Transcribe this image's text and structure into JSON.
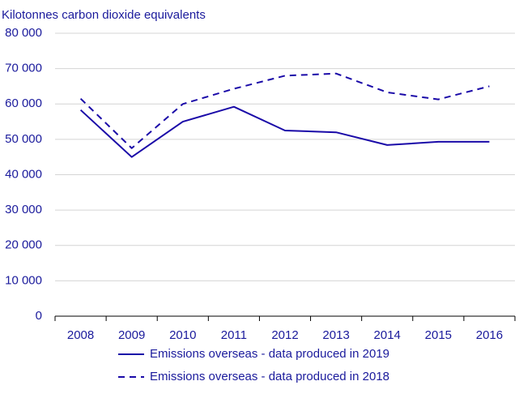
{
  "chart_data": {
    "type": "line",
    "title": "",
    "ylabel": "Kilotonnes carbon dioxide equivalents",
    "xlabel": "",
    "ylim": [
      0,
      80000
    ],
    "yticks": [
      0,
      10000,
      20000,
      30000,
      40000,
      50000,
      60000,
      70000,
      80000
    ],
    "ytick_labels": [
      "0",
      "10 000",
      "20 000",
      "30 000",
      "40 000",
      "50 000",
      "60 000",
      "70 000",
      "80 000"
    ],
    "categories": [
      "2008",
      "2009",
      "2010",
      "2011",
      "2012",
      "2013",
      "2014",
      "2015",
      "2016"
    ],
    "grid": "horizontal",
    "legend_position": "bottom",
    "series": [
      {
        "name": "Emissions overseas - data produced in 2019",
        "line_style": "solid",
        "values": [
          58300,
          45000,
          55000,
          59200,
          52500,
          52000,
          48400,
          49300,
          49300
        ]
      },
      {
        "name": "Emissions overseas - data produced in 2018",
        "line_style": "dashed",
        "values": [
          61500,
          47500,
          60000,
          64300,
          68000,
          68600,
          63300,
          61300,
          65000
        ]
      }
    ],
    "colors": {
      "text": "#1a1a9c",
      "series": "#1a0aa8",
      "grid": "#d4d4d4",
      "axis": "#000000"
    }
  }
}
